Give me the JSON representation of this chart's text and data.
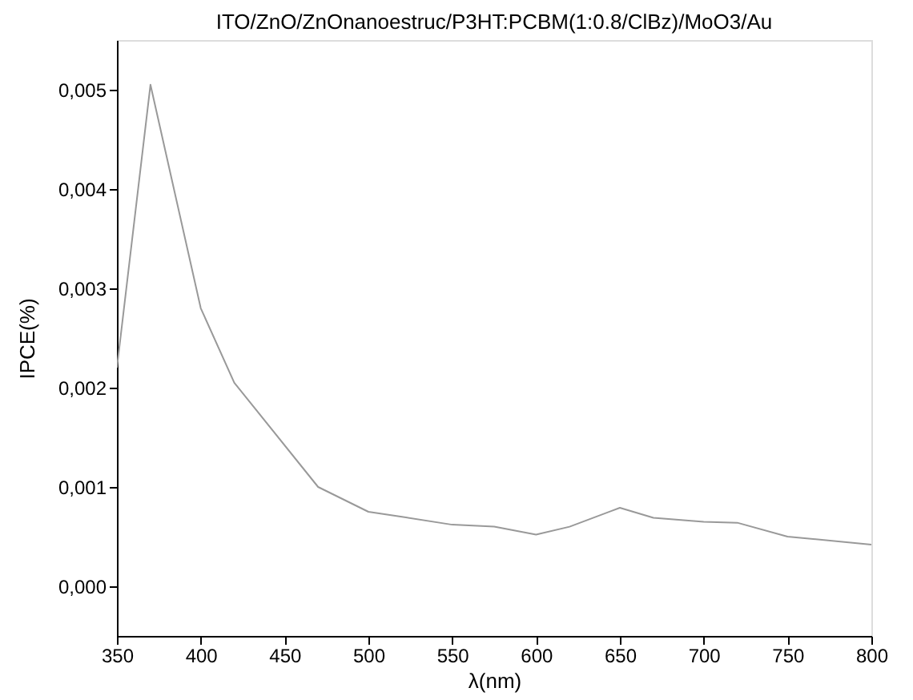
{
  "chart_data": {
    "type": "line",
    "title": "ITO/ZnO/ZnOnanoestruc/P3HT:PCBM(1:0.8/ClBz)/MoO3/Au",
    "xlabel": "λ(nm)",
    "ylabel": "IPCE(%)",
    "x": [
      350,
      370,
      400,
      420,
      470,
      500,
      520,
      550,
      575,
      600,
      620,
      650,
      670,
      700,
      720,
      750,
      800
    ],
    "series": [
      {
        "color": "#999999",
        "values": [
          0.0022,
          0.00505,
          0.0028,
          0.00205,
          0.001,
          0.00075,
          0.0007,
          0.00062,
          0.0006,
          0.00052,
          0.0006,
          0.00079,
          0.00069,
          0.00065,
          0.00064,
          0.0005,
          0.00042
        ]
      }
    ],
    "xlim": [
      350,
      800
    ],
    "xticks": [
      350,
      400,
      450,
      500,
      550,
      600,
      650,
      700,
      750,
      800
    ],
    "ylim": [
      -0.0005,
      0.0055
    ],
    "yticks": [
      {
        "value": 0,
        "label": "0,000"
      },
      {
        "value": 0.001,
        "label": "0,001"
      },
      {
        "value": 0.002,
        "label": "0,002"
      },
      {
        "value": 0.003,
        "label": "0,003"
      },
      {
        "value": 0.004,
        "label": "0,004"
      },
      {
        "value": 0.005,
        "label": "0,005"
      }
    ],
    "grid": false,
    "marker": "none",
    "line_style": "solid"
  }
}
